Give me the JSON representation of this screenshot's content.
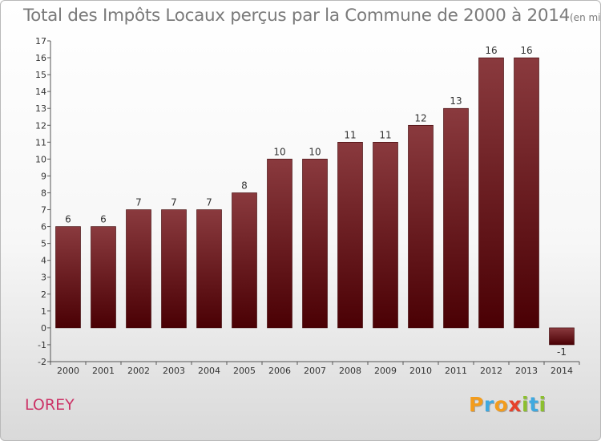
{
  "title": "Total des Impôts Locaux perçus par la Commune de 2000 à 2014",
  "unit": "(en milliers d'€)",
  "commune": "LOREY",
  "logo": {
    "text": "Proxiti",
    "letters": [
      {
        "char": "P",
        "color": "#f39c1c"
      },
      {
        "char": "r",
        "color": "#3fa9e0"
      },
      {
        "char": "o",
        "color": "#f39c1c"
      },
      {
        "char": "x",
        "color": "#e6412b"
      },
      {
        "char": "i",
        "color": "#8cbf2e"
      },
      {
        "char": "t",
        "color": "#3fa9e0"
      },
      {
        "char": "i",
        "color": "#8cbf2e"
      }
    ]
  },
  "colors": {
    "bar_top": "#8a3a3e",
    "bar_bottom": "#4a0004",
    "axis": "#555555",
    "tick_label": "#333333",
    "value_label": "#333333",
    "grid": "none"
  },
  "chart_data": {
    "type": "bar",
    "categories": [
      "2000",
      "2001",
      "2002",
      "2003",
      "2004",
      "2005",
      "2006",
      "2007",
      "2008",
      "2009",
      "2010",
      "2011",
      "2012",
      "2013",
      "2014"
    ],
    "values": [
      6,
      6,
      7,
      7,
      7,
      8,
      10,
      10,
      11,
      11,
      12,
      13,
      16,
      16,
      -1
    ],
    "value_labels": [
      "6",
      "6",
      "7",
      "7",
      "7",
      "8",
      "10",
      "10",
      "11",
      "11",
      "12",
      "13",
      "16",
      "16",
      "-1"
    ],
    "title": "Total des Impôts Locaux perçus par la Commune de 2000 à 2014",
    "xlabel": "",
    "ylabel": "",
    "ylim": [
      -2,
      17
    ],
    "yticks": [
      {
        "value": 17,
        "label": "17"
      },
      {
        "value": 16,
        "label": "16"
      },
      {
        "value": 15,
        "label": "15"
      },
      {
        "value": 14,
        "label": "14"
      },
      {
        "value": 13,
        "label": "13"
      },
      {
        "value": 12,
        "label": "12"
      },
      {
        "value": 11,
        "label": "11"
      },
      {
        "value": 10,
        "label": "10"
      },
      {
        "value": 9,
        "label": "9"
      },
      {
        "value": 8,
        "label": "8"
      },
      {
        "value": 7,
        "label": "7"
      },
      {
        "value": 6,
        "label": "6"
      },
      {
        "value": 5,
        "label": "5"
      },
      {
        "value": 4,
        "label": "4"
      },
      {
        "value": 3,
        "label": "3"
      },
      {
        "value": 2,
        "label": "2"
      },
      {
        "value": 1,
        "label": "1"
      },
      {
        "value": 0,
        "label": "0"
      },
      {
        "value": -1,
        "label": "-1"
      },
      {
        "value": -2,
        "label": "-2"
      }
    ],
    "grid": false,
    "legend": "none"
  }
}
